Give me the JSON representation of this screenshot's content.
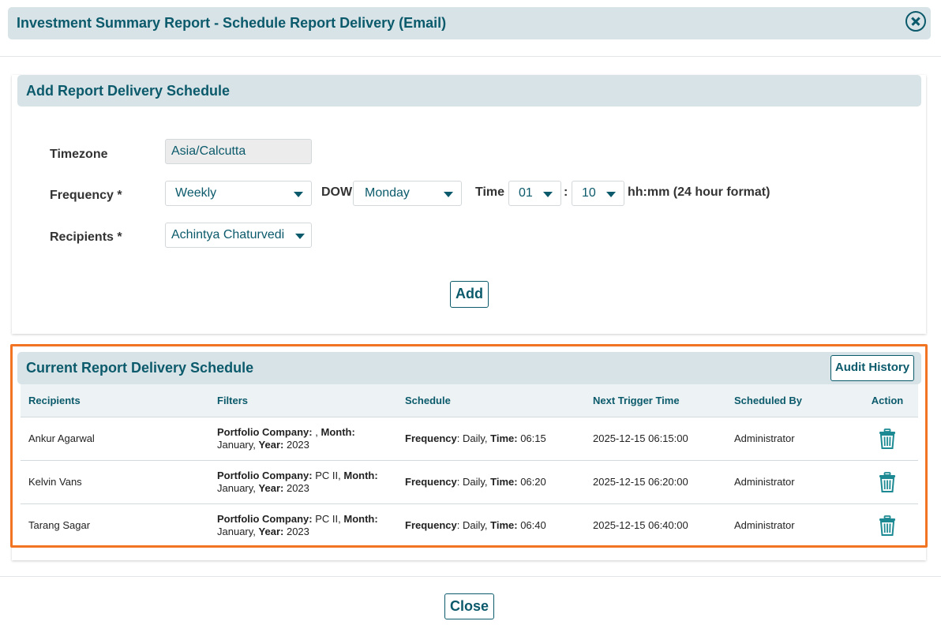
{
  "dialog": {
    "title": "Investment Summary Report - Schedule Report Delivery (Email)",
    "close_icon": "close-circle-icon"
  },
  "add_section": {
    "title": "Add Report Delivery Schedule",
    "timezone_label": "Timezone",
    "timezone_value": "Asia/Calcutta",
    "frequency_label": "Frequency *",
    "frequency_value": "Weekly",
    "dow_label": "DOW",
    "dow_value": "Monday",
    "time_label": "Time",
    "hour_value": "01",
    "time_sep": ":",
    "minute_value": "10",
    "time_hint": "hh:mm (24 hour format)",
    "recipients_label": "Recipients *",
    "recipients_value": "Achintya Chaturvedi",
    "add_button": "Add"
  },
  "current_section": {
    "title": "Current Report Delivery Schedule",
    "audit_button": "Audit History",
    "columns": [
      "Recipients",
      "Filters",
      "Schedule",
      "Next Trigger Time",
      "Scheduled By",
      "Action"
    ],
    "filter_labels": {
      "company": "Portfolio Company:",
      "month": "Month:",
      "year": "Year:"
    },
    "schedule_labels": {
      "frequency": "Frequency",
      "time": "Time:"
    },
    "rows": [
      {
        "recipient": "Ankur Agarwal",
        "company": " ,",
        "month": "January,",
        "year": "2023",
        "frequency": ": Daily,",
        "time": "06:15",
        "next_trigger": "2025-12-15 06:15:00",
        "scheduled_by": "Administrator",
        "action_icon": "trash-icon"
      },
      {
        "recipient": "Kelvin Vans",
        "company": "PC II,",
        "month": "January,",
        "year": "2023",
        "frequency": ": Daily,",
        "time": "06:20",
        "next_trigger": "2025-12-15 06:20:00",
        "scheduled_by": "Administrator",
        "action_icon": "trash-icon"
      },
      {
        "recipient": "Tarang Sagar",
        "company": "PC II,",
        "month": "January,",
        "year": "2023",
        "frequency": ": Daily,",
        "time": "06:40",
        "next_trigger": "2025-12-15 06:40:00",
        "scheduled_by": "Administrator",
        "action_icon": "trash-icon"
      }
    ]
  },
  "footer": {
    "close_button": "Close"
  },
  "colors": {
    "accent": "#0b5a6b",
    "header_bg": "#d8e3e8",
    "highlight": "#f07422"
  }
}
